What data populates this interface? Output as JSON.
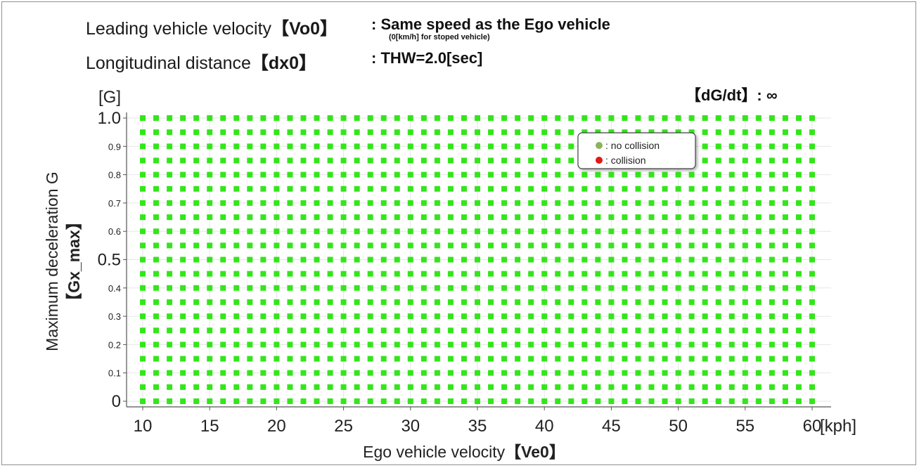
{
  "header": {
    "leading_label": "Leading vehicle velocity",
    "leading_var": "【Vo0】",
    "leading_value": ": Same speed as the Ego vehicle",
    "leading_note": "(0[km/h] for stoped vehicle)",
    "distance_label": "Longitudinal distance",
    "distance_var": "【dx0】",
    "distance_value": ": THW=2.0[sec]",
    "jerk_label": "【dG/dt】: ∞"
  },
  "legend": {
    "items": [
      {
        "symbol": "no-collision-dot",
        "label": ": no collision",
        "color": "#8db35a"
      },
      {
        "symbol": "collision-dot",
        "label": ": collision",
        "color": "#e01818"
      }
    ]
  },
  "colors": {
    "no_collision_marker": "#33e61a",
    "grid": "#e6e6e6"
  },
  "chart_data": {
    "type": "scatter",
    "xlabel": "Ego vehicle velocity",
    "xlabel_var": "【Ve0】",
    "x_unit": "[kph]",
    "ylabel": "Maximum deceleration G",
    "ylabel_var": "【Gx_max】",
    "y_unit": "[G]",
    "xlim": [
      10,
      60
    ],
    "ylim": [
      0,
      1.0
    ],
    "x_ticks": [
      10,
      15,
      20,
      25,
      30,
      35,
      40,
      45,
      50,
      55,
      60
    ],
    "x_tick_labels": [
      "10",
      "15",
      "20",
      "25",
      "30",
      "35",
      "40",
      "45",
      "50",
      "55",
      "60"
    ],
    "y_ticks": [
      0,
      0.1,
      0.2,
      0.3,
      0.4,
      0.5,
      0.6,
      0.7,
      0.8,
      0.9,
      1.0
    ],
    "y_tick_labels": [
      "0",
      "0.1",
      "0.2",
      "0.3",
      "0.4",
      "0.5",
      "0.6",
      "0.7",
      "0.8",
      "0.9",
      "1.0"
    ],
    "y_major_ticks": [
      0,
      0.5,
      1.0
    ],
    "grid": true,
    "legend_position": "top-right",
    "series": [
      {
        "name": "no collision",
        "x": {
          "start": 10,
          "end": 60,
          "step": 1
        },
        "y": {
          "start": 0,
          "end": 1.0,
          "step": 0.05
        },
        "count": 969
      },
      {
        "name": "collision",
        "x": {
          "start": 0,
          "end": 0,
          "step": 1
        },
        "y": {
          "start": 0,
          "end": 0,
          "step": 1
        },
        "count": 0
      }
    ]
  }
}
